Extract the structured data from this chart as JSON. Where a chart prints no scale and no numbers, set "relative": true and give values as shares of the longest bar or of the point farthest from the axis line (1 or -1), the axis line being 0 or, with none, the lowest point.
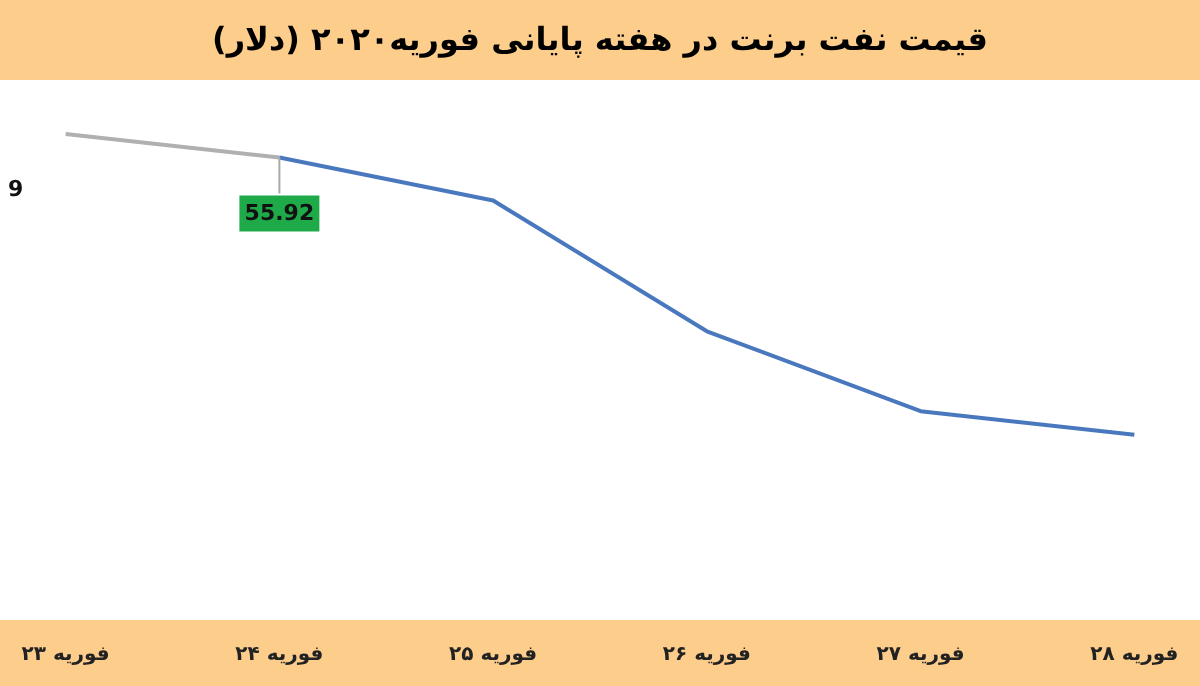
{
  "chart_data": {
    "type": "line",
    "title": "قیمت نفت برنت در هفته پایانی فوریه۲۰۲۰ (دلار)",
    "relative": true,
    "categories": [
      "۲۳ فوریه",
      "۲۴ فوریه",
      "۲۵ فوریه",
      "۲۶ فوریه",
      "۲۷ فوریه",
      "۲۸ فوریه"
    ],
    "series": [
      {
        "color": "#b0b0b0",
        "values": [
          1,
          0.922,
          null,
          null,
          null,
          null
        ]
      },
      {
        "color": "#4a78bf",
        "values": [
          null,
          0.922,
          0.779,
          0.344,
          0.078,
          0
        ]
      }
    ],
    "annotations": [
      "9",
      {
        "text": "55.92",
        "x": "۲۴ فوریه",
        "y": 0.922
      }
    ],
    "marker": "none",
    "line_style": "solid"
  }
}
